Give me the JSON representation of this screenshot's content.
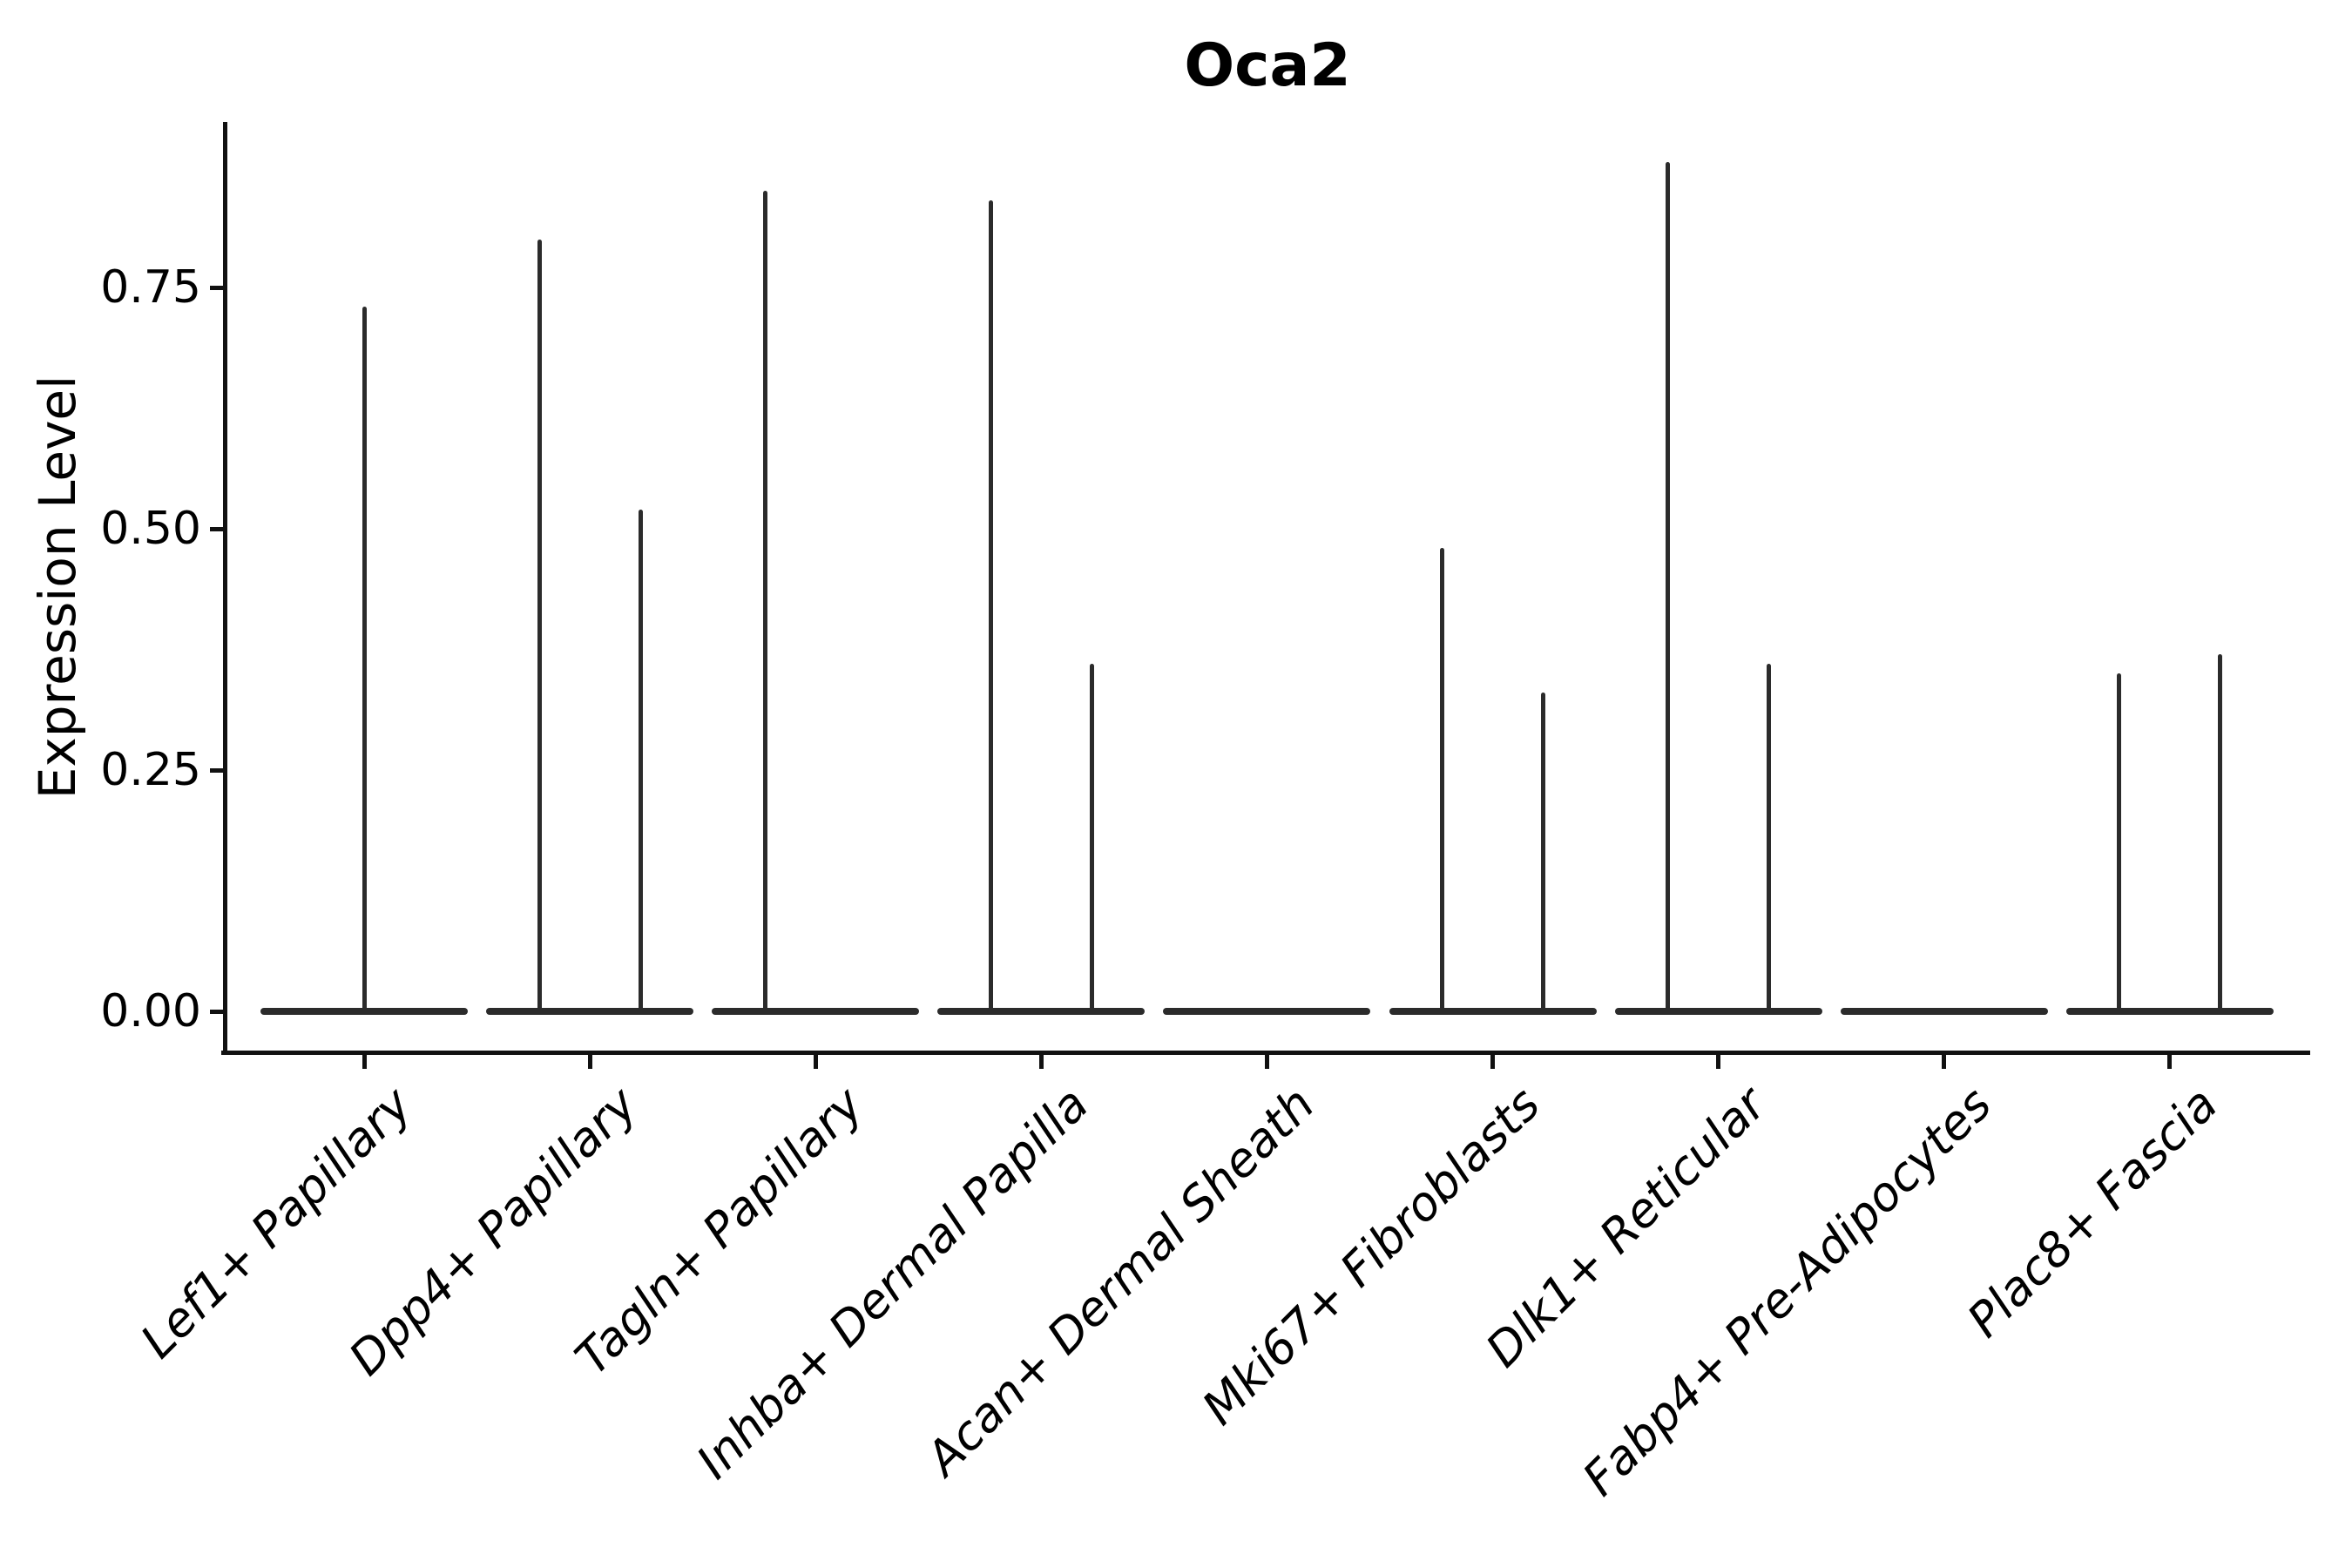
{
  "figure": {
    "title": "Oca2",
    "background": "#ffffff"
  },
  "y_axis": {
    "label": "Expression Level",
    "ticks": [
      {
        "value": 0.0,
        "label": "0.00"
      },
      {
        "value": 0.25,
        "label": "0.25"
      },
      {
        "value": 0.5,
        "label": "0.50"
      },
      {
        "value": 0.75,
        "label": "0.75"
      }
    ]
  },
  "x_axis": {
    "categories": [
      "Lef1+ Papillary",
      "Dpp4+ Papillary",
      "Tagln+ Papillary",
      "Inhba+ Dermal Papilla",
      "Acan+ Dermal Sheath",
      "Mki67+ Fibroblasts",
      "Dlk1+ Reticular",
      "Fabp4+ Pre-Adipocytes",
      "Plac8+ Fascia"
    ]
  },
  "chart_data": {
    "type": "violin",
    "title": "Oca2",
    "xlabel": "",
    "ylabel": "Expression Level",
    "ylim": [
      -0.04,
      0.92
    ],
    "y_ticks": [
      0.0,
      0.25,
      0.5,
      0.75
    ],
    "grid": false,
    "legend": null,
    "baseline_value": 0,
    "description": "Violin plot; expression concentrated at 0 giving wide flat bases with thin density spikes up to each group's maximum expression value.",
    "categories": [
      "Lef1+ Papillary",
      "Dpp4+ Papillary",
      "Tagln+ Papillary",
      "Inhba+ Dermal Papilla",
      "Acan+ Dermal Sheath",
      "Mki67+ Fibroblasts",
      "Dlk1+ Reticular",
      "Fabp4+ Pre-Adipocytes",
      "Plac8+ Fascia"
    ],
    "violins": [
      {
        "category": "Lef1+ Papillary",
        "base_at": 0,
        "spikes": [
          {
            "pos": "center",
            "max": 0.73
          }
        ]
      },
      {
        "category": "Dpp4+ Papillary",
        "base_at": 0,
        "spikes": [
          {
            "pos": "left",
            "max": 0.8
          },
          {
            "pos": "right",
            "max": 0.52
          }
        ]
      },
      {
        "category": "Tagln+ Papillary",
        "base_at": 0,
        "spikes": [
          {
            "pos": "left",
            "max": 0.85
          }
        ]
      },
      {
        "category": "Inhba+ Dermal Papilla",
        "base_at": 0,
        "spikes": [
          {
            "pos": "left",
            "max": 0.84
          },
          {
            "pos": "right",
            "max": 0.36
          }
        ]
      },
      {
        "category": "Acan+ Dermal Sheath",
        "base_at": 0,
        "spikes": []
      },
      {
        "category": "Mki67+ Fibroblasts",
        "base_at": 0,
        "spikes": [
          {
            "pos": "left",
            "max": 0.48
          },
          {
            "pos": "right",
            "max": 0.33
          }
        ]
      },
      {
        "category": "Dlk1+ Reticular",
        "base_at": 0,
        "spikes": [
          {
            "pos": "left",
            "max": 0.88
          },
          {
            "pos": "right",
            "max": 0.36
          }
        ]
      },
      {
        "category": "Fabp4+ Pre-Adipocytes",
        "base_at": 0,
        "spikes": []
      },
      {
        "category": "Plac8+ Fascia",
        "base_at": 0,
        "spikes": [
          {
            "pos": "left",
            "max": 0.35
          },
          {
            "pos": "right",
            "max": 0.37
          }
        ]
      }
    ]
  },
  "colors": {
    "violin_line": "#2b2b2b",
    "axis": "#111111",
    "text": "#000000",
    "background": "#ffffff"
  }
}
